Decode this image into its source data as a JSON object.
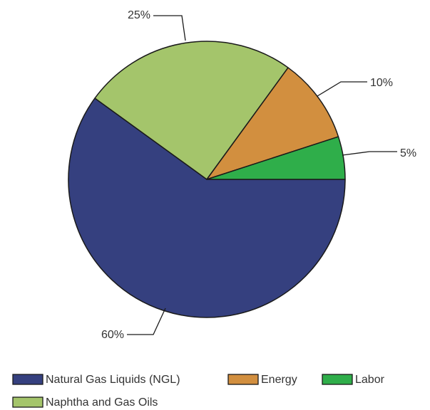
{
  "chart_data": {
    "type": "pie",
    "categories": [
      "Natural Gas Liquids (NGL)",
      "Energy",
      "Labor",
      "Naphtha and Gas Oils"
    ],
    "values": [
      60,
      10,
      5,
      25
    ],
    "value_labels": [
      "60%",
      "10%",
      "5%",
      "25%"
    ],
    "colors": [
      "#35407f",
      "#d28f3f",
      "#2fae4a",
      "#a4c56b"
    ],
    "legend": "bottom"
  }
}
